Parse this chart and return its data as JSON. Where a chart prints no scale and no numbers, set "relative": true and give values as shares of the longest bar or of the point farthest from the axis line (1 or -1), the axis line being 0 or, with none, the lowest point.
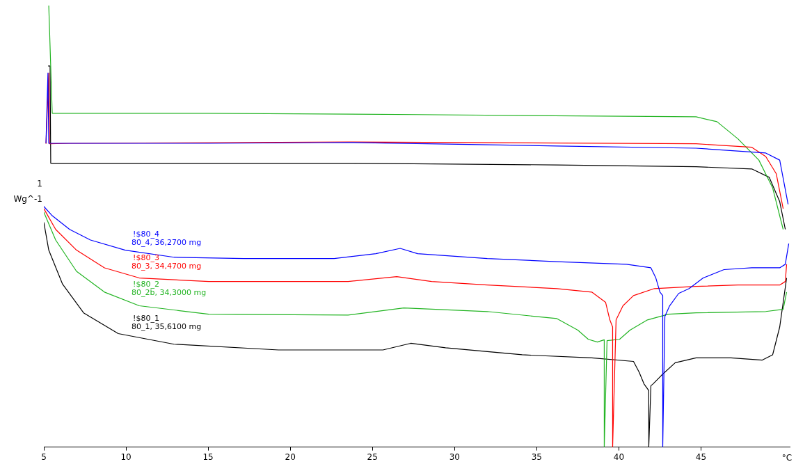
{
  "chart_data": {
    "type": "line",
    "relative": true,
    "xlabel": "°C",
    "ylabel": "Wg^-1",
    "xlim": [
      5,
      50.4
    ],
    "xticks": [
      5,
      10,
      15,
      20,
      25,
      30,
      35,
      40,
      45
    ],
    "legend": false,
    "grid": false,
    "marker": "none",
    "annotations": [
      "80_4, 36,2700 mg",
      "80_3, 34,4700 mg",
      "80_2b, 34,3000 mg",
      "80_1, 35,6100 mg",
      "1"
    ],
    "series": [
      {
        "name": "!$80_4",
        "color": "#0000ff",
        "x": [
          5,
          5.51,
          6.57,
          7.84,
          9.96,
          12.92,
          17.16,
          22.67,
          25.21,
          26.69,
          27.75,
          31.99,
          36.23,
          40.47,
          41.95,
          42.25,
          42.5,
          42.67,
          42.67,
          42.8,
          43.09,
          43.64,
          44.28,
          45.13,
          46.4,
          48.09,
          49.79,
          50.13,
          50.34
        ],
        "values": [
          0.545,
          0.524,
          0.493,
          0.469,
          0.446,
          0.43,
          0.427,
          0.427,
          0.438,
          0.45,
          0.438,
          0.427,
          0.42,
          0.414,
          0.406,
          0.383,
          0.351,
          0.343,
          0,
          0.296,
          0.32,
          0.348,
          0.359,
          0.383,
          0.402,
          0.406,
          0.406,
          0.414,
          0.461
        ]
      },
      {
        "color": "#0000ff",
        "x": [
          5.13,
          5.25,
          5.3,
          10.81,
          15.04,
          23.52,
          36.23,
          44.7,
          48.94,
          49.79,
          50.3
        ],
        "values": [
          0.688,
          0.847,
          0.688,
          0.688,
          0.688,
          0.69,
          0.682,
          0.677,
          0.666,
          0.65,
          0.55
        ]
      },
      {
        "name": "!$80_3",
        "color": "#ff0000",
        "x": [
          5,
          5.72,
          6.99,
          8.69,
          10.81,
          15.04,
          23.52,
          26.48,
          28.6,
          31.99,
          36.23,
          38.35,
          39.19,
          39.45,
          39.62,
          39.62,
          39.83,
          40.25,
          40.89,
          42.16,
          44.7,
          47.25,
          49.79,
          50.13,
          50.21
        ],
        "values": [
          0.54,
          0.493,
          0.446,
          0.406,
          0.383,
          0.375,
          0.375,
          0.386,
          0.375,
          0.367,
          0.359,
          0.351,
          0.328,
          0.288,
          0.272,
          0,
          0.288,
          0.32,
          0.343,
          0.359,
          0.364,
          0.367,
          0.367,
          0.375,
          0.414
        ]
      },
      {
        "color": "#ff0000",
        "x": [
          5.13,
          5.3,
          5.35,
          6.57,
          23.52,
          44.7,
          48.09,
          48.94,
          49.58,
          50
        ],
        "values": [
          0.687,
          0.847,
          0.687,
          0.688,
          0.691,
          0.687,
          0.679,
          0.658,
          0.619,
          0.54
        ]
      },
      {
        "name": "!$80_2",
        "color": "#22b422",
        "x": [
          5,
          5.72,
          6.99,
          8.69,
          10.81,
          15.04,
          23.52,
          26.91,
          31.99,
          36.23,
          37.5,
          38.14,
          38.69,
          39.11,
          39.11,
          39.28,
          40.04,
          40.68,
          41.74,
          43.01,
          44.7,
          48.94,
          50,
          50.21
        ],
        "values": [
          0.532,
          0.469,
          0.398,
          0.351,
          0.32,
          0.301,
          0.299,
          0.315,
          0.307,
          0.291,
          0.265,
          0.244,
          0.238,
          0.243,
          0,
          0.241,
          0.244,
          0.265,
          0.288,
          0.301,
          0.304,
          0.307,
          0.312,
          0.351
        ]
      },
      {
        "color": "#22b422",
        "x": [
          5.3,
          5.51,
          15.04,
          27.75,
          44.7,
          45.97,
          47.25,
          48.52,
          49.36,
          50
        ],
        "values": [
          1,
          0.756,
          0.756,
          0.753,
          0.748,
          0.737,
          0.698,
          0.65,
          0.587,
          0.493
        ]
      },
      {
        "name": "!$80_1",
        "color": "#000000",
        "x": [
          5,
          5.3,
          6.14,
          7.42,
          9.53,
          12.92,
          19.28,
          25.64,
          27.33,
          29.45,
          34.11,
          38.35,
          40.89,
          41.23,
          41.53,
          41.82,
          41.82,
          41.95,
          42.08,
          42.58,
          43.43,
          44.7,
          46.82,
          48.73,
          49.36,
          49.79,
          50.21
        ],
        "values": [
          0.509,
          0.446,
          0.369,
          0.304,
          0.257,
          0.233,
          0.22,
          0.22,
          0.235,
          0.225,
          0.209,
          0.202,
          0.194,
          0.17,
          0.143,
          0.128,
          0,
          0.139,
          0.143,
          0.162,
          0.191,
          0.202,
          0.202,
          0.197,
          0.209,
          0.272,
          0.383
        ]
      },
      {
        "color": "#000000",
        "x": [
          5.26,
          5.38,
          5.42,
          10.81,
          23.52,
          36.23,
          44.7,
          48.09,
          49.15,
          49.79,
          50.13
        ],
        "values": [
          0.863,
          0.863,
          0.643,
          0.643,
          0.643,
          0.639,
          0.635,
          0.63,
          0.611,
          0.556,
          0.493
        ]
      }
    ]
  }
}
